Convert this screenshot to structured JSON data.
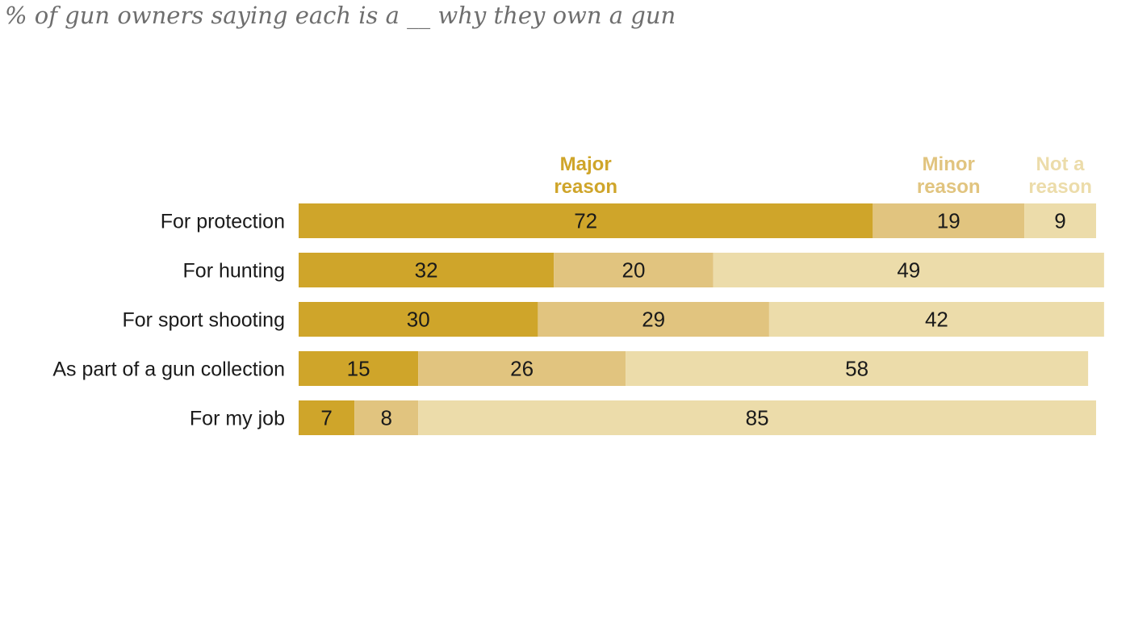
{
  "subtitle": "% of gun owners saying each is a __ why they own a gun",
  "chart_data": {
    "type": "bar",
    "orientation": "horizontal",
    "stacked": true,
    "subtitle": "% of gun owners saying each is a __ why they own a gun",
    "categories": [
      "For protection",
      "For hunting",
      "For sport shooting",
      "As part of a gun collection",
      "For my job"
    ],
    "series": [
      {
        "name": "Major reason",
        "legend_lines": [
          "Major",
          "reason"
        ],
        "color": "#cfa52a",
        "values": [
          72,
          32,
          30,
          15,
          7
        ]
      },
      {
        "name": "Minor reason",
        "legend_lines": [
          "Minor",
          "reason"
        ],
        "color": "#e1c47f",
        "values": [
          19,
          20,
          29,
          26,
          8
        ]
      },
      {
        "name": "Not a reason",
        "legend_lines": [
          "Not a",
          "reason"
        ],
        "color": "#ecdcaa",
        "values": [
          9,
          49,
          42,
          58,
          85
        ]
      }
    ],
    "xlim": [
      0,
      100
    ],
    "grid": false,
    "legend_placement": "top, above first bar"
  }
}
